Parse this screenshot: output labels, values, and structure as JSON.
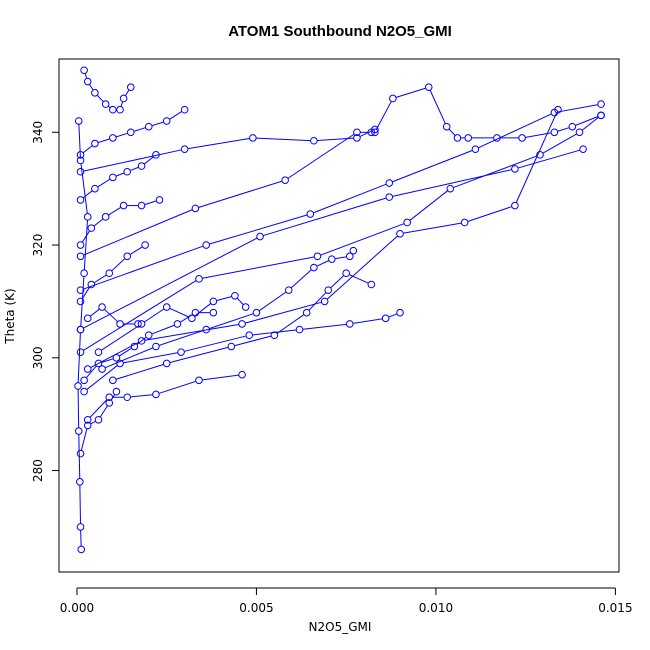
{
  "chart_data": {
    "type": "line",
    "title": "ATOM1 Southbound N2O5_GMI",
    "xlabel": "N2O5_GMI",
    "ylabel": "Theta (K)",
    "xlim": [
      -0.0005,
      0.0151
    ],
    "ylim": [
      262,
      353
    ],
    "x_ticks": [
      0.0,
      0.005,
      0.01,
      0.015
    ],
    "x_tick_labels": [
      "0.000",
      "0.005",
      "0.010",
      "0.015"
    ],
    "y_ticks": [
      280,
      300,
      320,
      340
    ],
    "y_tick_labels": [
      "280",
      "300",
      "320",
      "340"
    ],
    "grid": false,
    "marker": "open-circle",
    "color": "#0000ff",
    "series": [
      {
        "x": [
          0.00012,
          0.0001,
          8e-05,
          5e-05,
          3e-05,
          0.0001,
          0.0002,
          0.0003,
          0.0001,
          5e-05
        ],
        "y": [
          266,
          270,
          278,
          287,
          295,
          305,
          315,
          325,
          335,
          342
        ]
      },
      {
        "x": [
          0.0002,
          0.0003,
          0.0005,
          0.0008,
          0.001,
          0.0012,
          0.0013,
          0.0015
        ],
        "y": [
          351,
          349,
          347,
          345,
          344,
          344,
          346,
          348
        ]
      },
      {
        "x": [
          0.0001,
          0.0005,
          0.001,
          0.0015,
          0.002,
          0.0025,
          0.003
        ],
        "y": [
          336,
          338,
          339,
          340,
          341,
          342,
          344
        ]
      },
      {
        "x": [
          0.0001,
          0.003,
          0.0049,
          0.0066,
          0.0078,
          0.0083
        ],
        "y": [
          333,
          337,
          339,
          338.5,
          339,
          340.5
        ]
      },
      {
        "x": [
          0.0083,
          0.0088,
          0.0098,
          0.0103,
          0.0106,
          0.0109,
          0.0117,
          0.0124,
          0.0133,
          0.0138,
          0.0146
        ],
        "y": [
          340,
          346,
          348,
          341,
          339,
          339,
          339,
          339,
          340,
          341,
          343
        ]
      },
      {
        "x": [
          0.0001,
          0.0033,
          0.0058,
          0.0078,
          0.0082
        ],
        "y": [
          318,
          326.5,
          331.5,
          340,
          340
        ]
      },
      {
        "x": [
          0.0001,
          0.0036,
          0.0065,
          0.0087,
          0.0111,
          0.0133,
          0.0146
        ],
        "y": [
          312,
          320,
          325.5,
          331,
          337,
          343.5,
          345
        ]
      },
      {
        "x": [
          0.0001,
          0.0051,
          0.0087,
          0.0122,
          0.0141
        ],
        "y": [
          305,
          321.5,
          328.5,
          333.5,
          337
        ]
      },
      {
        "x": [
          0.0001,
          0.0034,
          0.0067,
          0.0092,
          0.0104,
          0.0129,
          0.014,
          0.0146
        ],
        "y": [
          301,
          314,
          318,
          324,
          330,
          336,
          340,
          343
        ]
      },
      {
        "x": [
          0.0003,
          0.0018,
          0.0046,
          0.0069,
          0.009,
          0.0108,
          0.0122,
          0.0134
        ],
        "y": [
          298,
          303,
          306,
          310,
          322,
          324,
          327,
          344
        ]
      },
      {
        "x": [
          0.0006,
          0.0018,
          0.0025,
          0.0032,
          0.0038,
          0.0044,
          0.0047
        ],
        "y": [
          301,
          306,
          309,
          307,
          310,
          311,
          309
        ]
      },
      {
        "x": [
          0.0007,
          0.0022,
          0.0036,
          0.005,
          0.0059,
          0.0066,
          0.0071,
          0.0076,
          0.0077
        ],
        "y": [
          298,
          302,
          305,
          308,
          312,
          316,
          317.5,
          318,
          319
        ]
      },
      {
        "x": [
          0.001,
          0.0025,
          0.0043,
          0.0055,
          0.0064,
          0.007,
          0.0075,
          0.0082
        ],
        "y": [
          296,
          299,
          302,
          304,
          308,
          312,
          315,
          313
        ]
      },
      {
        "x": [
          0.0002,
          0.0012,
          0.0029,
          0.0048,
          0.0062,
          0.0076,
          0.0086,
          0.009
        ],
        "y": [
          294,
          299,
          301,
          304,
          305,
          306,
          307,
          308
        ]
      },
      {
        "x": [
          0.0003,
          0.0009,
          0.0014,
          0.0022,
          0.0034,
          0.0046
        ],
        "y": [
          289,
          293,
          293,
          293.5,
          296,
          297
        ]
      },
      {
        "x": [
          0.0002,
          0.0006,
          0.0011,
          0.0016,
          0.002,
          0.0028,
          0.0033,
          0.0038
        ],
        "y": [
          296,
          299,
          300,
          302,
          304,
          306,
          308,
          308
        ]
      },
      {
        "x": [
          0.0001,
          0.0004,
          0.0008,
          0.0013,
          0.0018,
          0.0023
        ],
        "y": [
          320,
          323,
          325,
          327,
          327,
          328
        ]
      },
      {
        "x": [
          0.0001,
          0.0005,
          0.001,
          0.0014,
          0.0018,
          0.0022
        ],
        "y": [
          328,
          330,
          332,
          333,
          334,
          336
        ]
      },
      {
        "x": [
          0.0001,
          0.0004,
          0.0009,
          0.0014,
          0.0019
        ],
        "y": [
          310,
          313,
          315,
          318,
          320
        ]
      },
      {
        "x": [
          0.0003,
          0.0007,
          0.0012,
          0.0017
        ],
        "y": [
          307,
          309,
          306,
          306
        ]
      },
      {
        "x": [
          0.0001,
          0.0003,
          0.0006,
          0.0009,
          0.0011
        ],
        "y": [
          283,
          288,
          289,
          292,
          294
        ]
      }
    ]
  }
}
